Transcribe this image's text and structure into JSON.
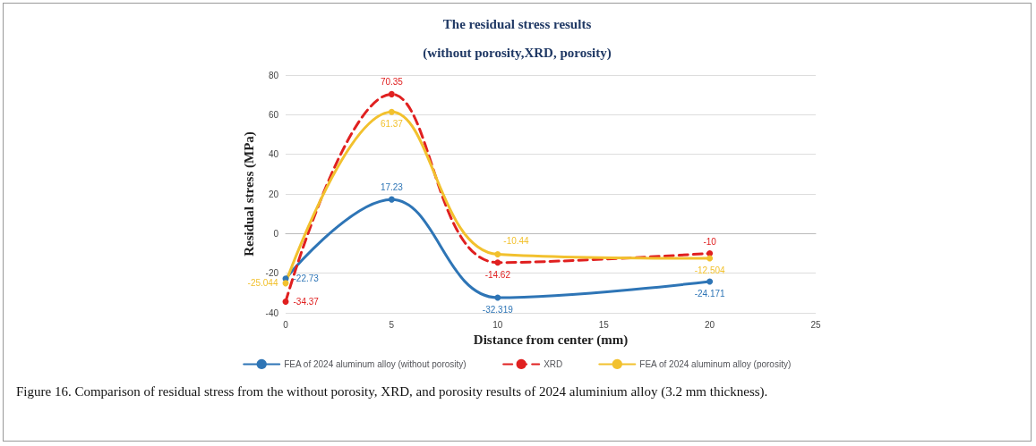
{
  "chart_data": {
    "type": "line",
    "title": "The residual stress results",
    "subtitle": "(without porosity,XRD, porosity)",
    "xlabel": "Distance from center (mm)",
    "ylabel": "Residual stress (MPa)",
    "x": [
      0,
      5,
      10,
      20
    ],
    "series": [
      {
        "name": "FEA of 2024 aluminum alloy (without porosity)",
        "color": "#2e75b6",
        "values": [
          -22.73,
          17.23,
          -32.319,
          -24.171
        ],
        "line_style": "solid"
      },
      {
        "name": "XRD",
        "color": "#e02020",
        "values": [
          -34.37,
          70.35,
          -14.62,
          -10
        ],
        "line_style": "dashed"
      },
      {
        "name": "FEA of 2024 aluminum alloy (porosity)",
        "color": "#f2c12e",
        "values": [
          -25.044,
          61.37,
          -10.44,
          -12.504
        ],
        "line_style": "solid"
      }
    ],
    "xlim": [
      0,
      25
    ],
    "xticks": [
      0,
      5,
      10,
      15,
      20,
      25
    ],
    "ylim": [
      -40,
      80
    ],
    "yticks": [
      -40,
      -20,
      0,
      20,
      40,
      60,
      80
    ],
    "grid": "y",
    "legend": "bottom",
    "marker": "circle",
    "data_labels": true,
    "annotations": [
      "Figure 16. Comparison of residual stress from the without porosity, XRD, and porosity results of 2024 aluminium alloy (3.2 mm thickness)."
    ]
  }
}
